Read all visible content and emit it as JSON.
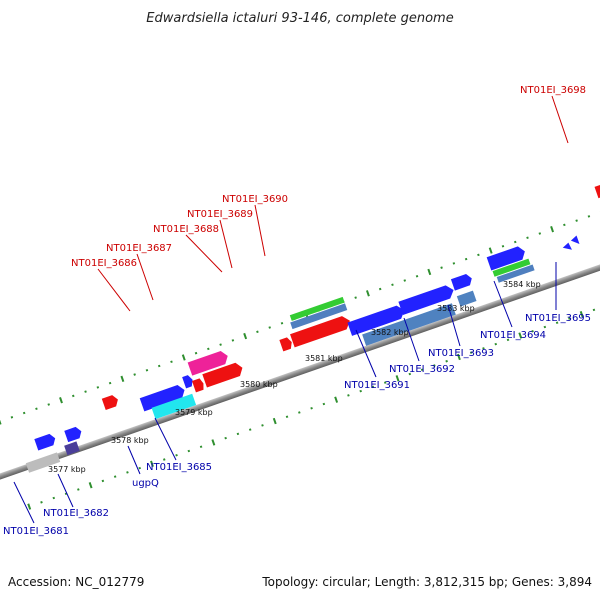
{
  "title": "Edwardsiella ictaluri 93-146, complete genome",
  "footer": {
    "accession": "Accession: NC_012779",
    "summary": "Topology: circular; Length: 3,812,315 bp; Genes: 3,894"
  },
  "colors": {
    "backbone": "#8a8a8a",
    "dots": "#2f8f2f",
    "label_forward": "#cc0000",
    "label_reverse": "#0000aa"
  },
  "scale_labels": [
    "3577 kbp",
    "3578 kbp",
    "3579 kbp",
    "3580 kbp",
    "3581 kbp",
    "3582 kbp",
    "3583 kbp",
    "3584 kbp"
  ],
  "forward_labels": [
    "NT01EI_3686",
    "NT01EI_3687",
    "NT01EI_3688",
    "NT01EI_3689",
    "NT01EI_3690",
    "NT01EI_3698"
  ],
  "reverse_labels": [
    "NT01EI_3681",
    "NT01EI_3682",
    "ugpQ",
    "NT01EI_3685",
    "NT01EI_3691",
    "NT01EI_3692",
    "NT01EI_3693",
    "NT01EI_3694",
    "NT01EI_3695"
  ]
}
